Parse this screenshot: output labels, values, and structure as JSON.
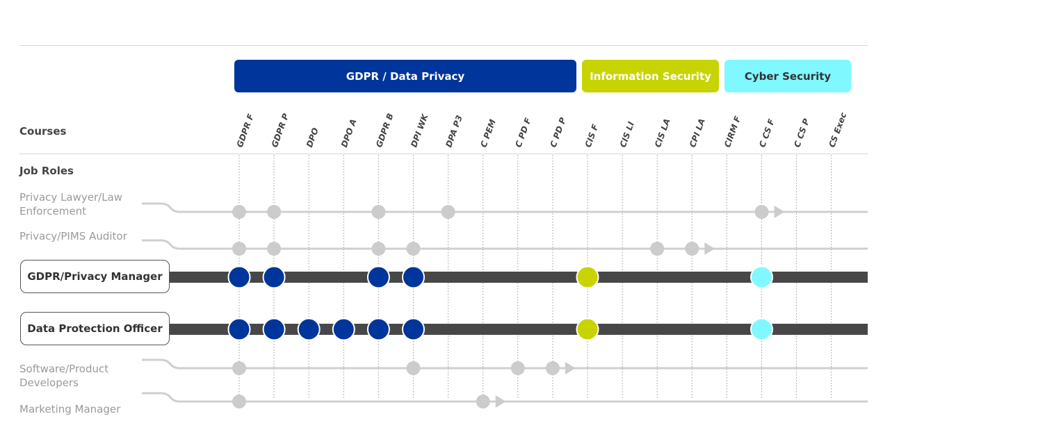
{
  "header_labels": {
    "courses": "Courses",
    "job_roles": "Job Roles"
  },
  "categories": [
    {
      "label": "GDPR / Data Privacy",
      "color": "#00359b",
      "text_color": "#ffffff",
      "courses": [
        "GDPR F",
        "GDPR P",
        "DPO",
        "DPO A",
        "GDPR B",
        "DPI WK",
        "DPA P3"
      ]
    },
    {
      "label": "Information Security",
      "color": "#c8d400",
      "text_color": "#ffffff",
      "courses": [
        "C PEM",
        "C PD F",
        "C PD P",
        "CIS F",
        "CIS LI",
        "CIS LA",
        "CPI LA"
      ]
    },
    {
      "label": "Cyber Security",
      "color": "#7ff9ff",
      "text_color": "#333333",
      "courses": [
        "CIRM F",
        "C CS F",
        "C CS P",
        "CS Exec"
      ]
    }
  ],
  "courses": [
    "GDPR F",
    "GDPR P",
    "DPO",
    "DPO A",
    "GDPR B",
    "DPI WK",
    "DPA P3",
    "C PEM",
    "C PD F",
    "C PD P",
    "CIS F",
    "CIS LI",
    "CIS LA",
    "CPI LA",
    "CIRM F",
    "C CS F",
    "C CS P",
    "CS Exec"
  ],
  "colors": {
    "track_light": "#cfcfcf",
    "dot_light": "#cccccc",
    "track_dark": "#474747"
  },
  "roles": [
    {
      "label": "Privacy Lawyer/Law Enforcement",
      "highlighted": false,
      "courses": [
        "GDPR F",
        "GDPR P",
        "GDPR B",
        "DPA P3",
        "C CS F"
      ]
    },
    {
      "label": "Privacy/PIMS Auditor",
      "highlighted": false,
      "courses": [
        "GDPR F",
        "GDPR P",
        "GDPR B",
        "DPI WK",
        "CIS LA",
        "CPI LA"
      ]
    },
    {
      "label": "GDPR/Privacy Manager",
      "highlighted": true,
      "courses": [
        "GDPR F",
        "GDPR P",
        "GDPR B",
        "DPI WK",
        "CIS F",
        "C CS F"
      ]
    },
    {
      "label": "Data Protection Officer",
      "highlighted": true,
      "courses": [
        "GDPR F",
        "GDPR P",
        "DPO",
        "DPO A",
        "GDPR B",
        "DPI WK",
        "CIS F",
        "C CS F"
      ]
    },
    {
      "label": "Software/Product Developers",
      "highlighted": false,
      "courses": [
        "GDPR F",
        "DPI WK",
        "C PD F",
        "C PD P"
      ]
    },
    {
      "label": "Marketing Manager",
      "highlighted": false,
      "courses": [
        "GDPR F",
        "C PEM"
      ]
    }
  ]
}
